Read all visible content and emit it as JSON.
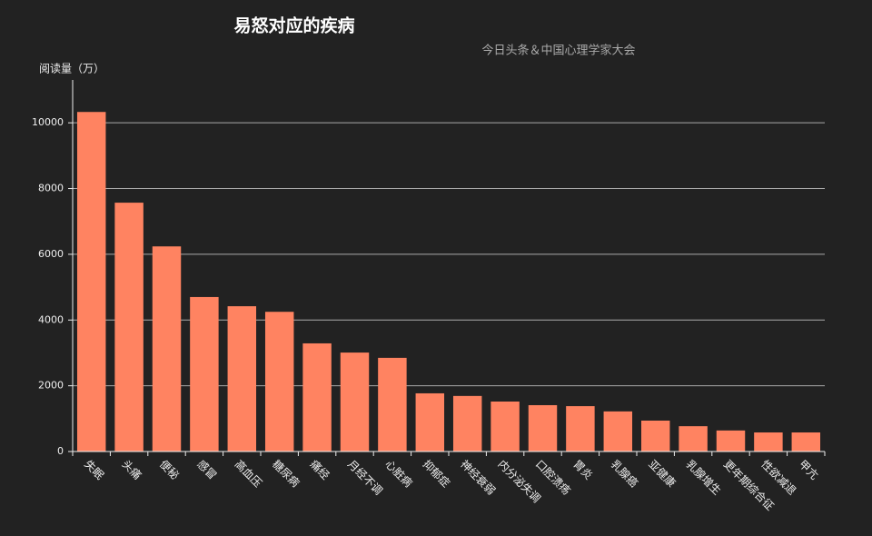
{
  "chart_data": {
    "type": "bar",
    "title": "易怒对应的疾病",
    "subtitle": "今日头条＆中国心理学家大会",
    "y_label": "阅读量（万）",
    "categories": [
      "失眠",
      "头痛",
      "便秘",
      "感冒",
      "高血压",
      "糖尿病",
      "痛经",
      "月经不调",
      "心脏病",
      "抑郁症",
      "神经衰弱",
      "内分泌失调",
      "口腔溃疡",
      "胃炎",
      "乳腺癌",
      "亚健康",
      "乳腺增生",
      "更年期综合征",
      "性欲减退",
      "甲亢"
    ],
    "values": [
      10330,
      7570,
      6240,
      4700,
      4420,
      4250,
      3290,
      3010,
      2850,
      1770,
      1690,
      1520,
      1410,
      1380,
      1220,
      940,
      770,
      640,
      580,
      580
    ],
    "color": "#ff8361",
    "ylim": [
      0,
      11000
    ],
    "yticks": [
      0,
      2000,
      4000,
      6000,
      8000,
      10000
    ],
    "grid": true
  }
}
